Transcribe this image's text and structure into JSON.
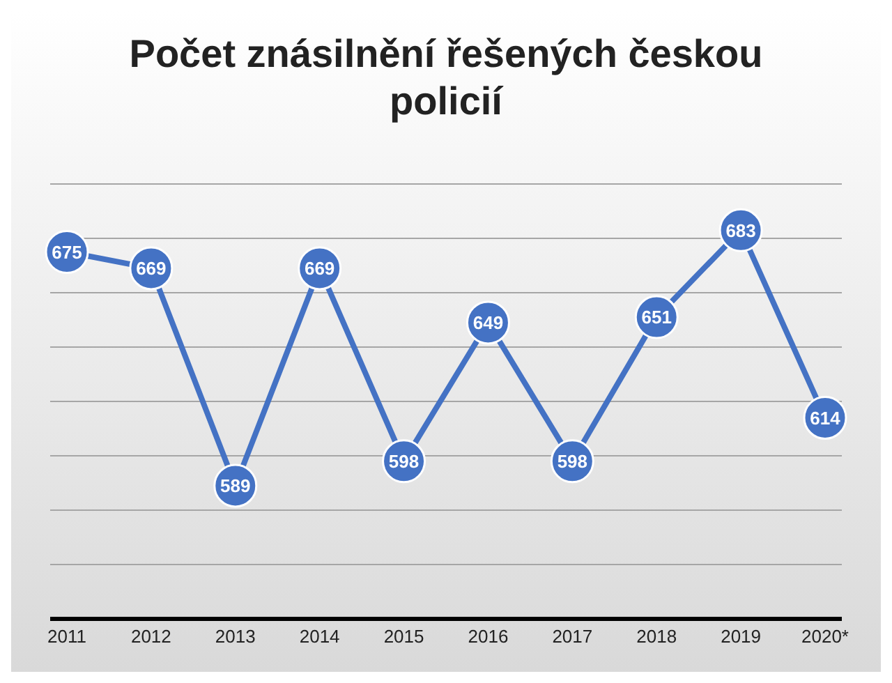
{
  "chart_data": {
    "type": "line",
    "title": "Počet znásilnění řešených českou policií",
    "categories": [
      "2011",
      "2012",
      "2013",
      "2014",
      "2015",
      "2016",
      "2017",
      "2018",
      "2019",
      "2020*"
    ],
    "series": [
      {
        "color": "#4472c4",
        "values": [
          675,
          669,
          589,
          669,
          598,
          649,
          598,
          651,
          683,
          614
        ]
      }
    ],
    "ylim": [
      540,
      700
    ],
    "yticks": [
      {
        "value": 540,
        "label": null
      },
      {
        "value": 560,
        "label": null
      },
      {
        "value": 580,
        "label": null
      },
      {
        "value": 600,
        "label": null
      },
      {
        "value": 620,
        "label": null
      },
      {
        "value": 640,
        "label": null
      },
      {
        "value": 660,
        "label": null
      },
      {
        "value": 680,
        "label": null
      },
      {
        "value": 700,
        "label": null
      }
    ],
    "grid": "y",
    "tick_labels": "x",
    "marker": "circle",
    "line_style": "solid",
    "data_labels": true,
    "legend": false
  }
}
